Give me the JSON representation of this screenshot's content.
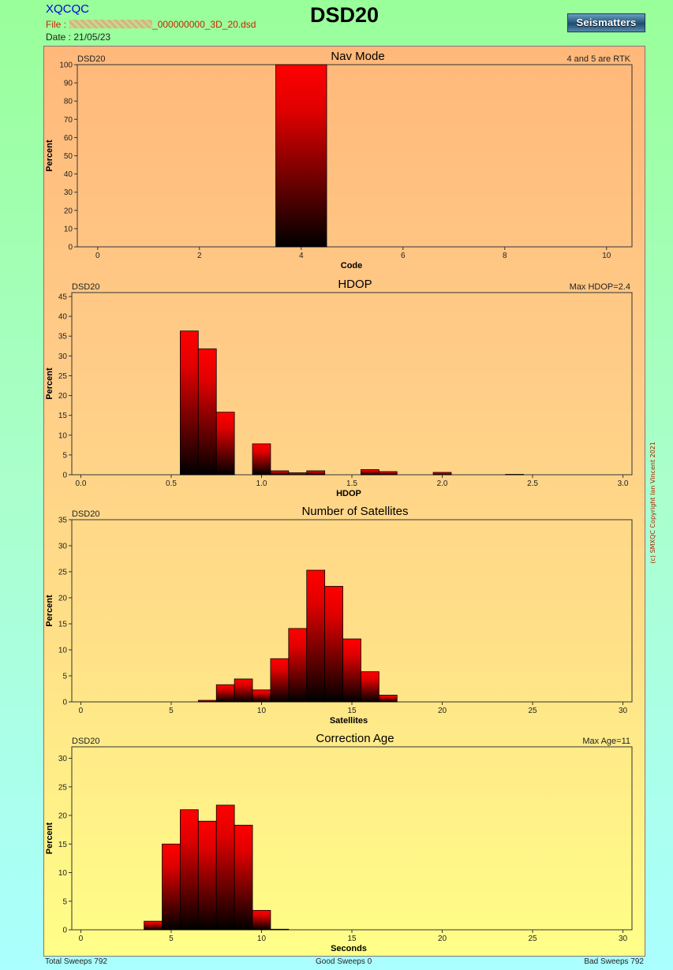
{
  "header": {
    "app_name": "XQCQC",
    "file_prefix": "File :",
    "file_name": "_000000000_3D_20.dsd",
    "date": "Date : 21/05/23",
    "title": "DSD20",
    "logo": "Seismatters"
  },
  "copyright": "(c) SMXQC Copyright Ian Vincent 2021",
  "footer": {
    "total": "Total Sweeps 792",
    "good": "Good Sweeps 0",
    "bad": "Bad Sweeps 792"
  },
  "colors": {
    "bar_top": "#ff0000",
    "bar_bottom": "#000000",
    "plot_border": "#333333"
  },
  "chart_data": [
    {
      "type": "bar",
      "title": "Nav Mode",
      "left_label": "DSD20",
      "right_label": "4 and 5 are RTK",
      "xlabel": "Code",
      "ylabel": "Percent",
      "xlim": [
        -0.4,
        10.5
      ],
      "ylim": [
        0,
        100
      ],
      "x_ticks": [
        0,
        2,
        4,
        6,
        8,
        10
      ],
      "x_tick_labels": [
        "0",
        "2",
        "4",
        "6",
        "8",
        "10"
      ],
      "y_ticks": [
        0,
        10,
        20,
        30,
        40,
        50,
        60,
        70,
        80,
        90,
        100
      ],
      "bar_width": 1,
      "x": [
        4
      ],
      "values": [
        100
      ]
    },
    {
      "type": "bar",
      "title": "HDOP",
      "left_label": "DSD20",
      "right_label": "Max HDOP=2.4",
      "xlabel": "HDOP",
      "ylabel": "Percent",
      "xlim": [
        -0.05,
        3.05
      ],
      "ylim": [
        0,
        46
      ],
      "x_ticks": [
        0,
        0.5,
        1,
        1.5,
        2,
        2.5,
        3
      ],
      "x_tick_labels": [
        "0.0",
        "0.5",
        "1.0",
        "1.5",
        "2.0",
        "2.5",
        "3.0"
      ],
      "y_ticks": [
        0,
        5,
        10,
        15,
        20,
        25,
        30,
        35,
        40,
        45
      ],
      "bar_width": 0.1,
      "x": [
        0.6,
        0.7,
        0.8,
        1.0,
        1.1,
        1.2,
        1.3,
        1.6,
        1.7,
        2.0,
        2.4
      ],
      "values": [
        36.3,
        31.8,
        15.8,
        7.8,
        1.0,
        0.5,
        1.0,
        1.3,
        0.8,
        0.6,
        0.1
      ]
    },
    {
      "type": "bar",
      "title": "Number of Satellites",
      "left_label": "DSD20",
      "right_label": "",
      "xlabel": "Satellites",
      "ylabel": "Percent",
      "xlim": [
        -0.5,
        30.5
      ],
      "ylim": [
        0,
        35
      ],
      "x_ticks": [
        0,
        5,
        10,
        15,
        20,
        25,
        30
      ],
      "x_tick_labels": [
        "0",
        "5",
        "10",
        "15",
        "20",
        "25",
        "30"
      ],
      "y_ticks": [
        0,
        5,
        10,
        15,
        20,
        25,
        30,
        35
      ],
      "bar_width": 1,
      "x": [
        7,
        8,
        9,
        10,
        11,
        12,
        13,
        14,
        15,
        16,
        17
      ],
      "values": [
        0.3,
        3.3,
        4.4,
        2.3,
        8.3,
        14.1,
        25.3,
        22.2,
        12.1,
        5.8,
        1.3
      ]
    },
    {
      "type": "bar",
      "title": "Correction Age",
      "left_label": "DSD20",
      "right_label": "Max Age=11",
      "xlabel": "Seconds",
      "ylabel": "Percent",
      "xlim": [
        -0.5,
        30.5
      ],
      "ylim": [
        0,
        32
      ],
      "x_ticks": [
        0,
        5,
        10,
        15,
        20,
        25,
        30
      ],
      "x_tick_labels": [
        "0",
        "5",
        "10",
        "15",
        "20",
        "25",
        "30"
      ],
      "y_ticks": [
        0,
        5,
        10,
        15,
        20,
        25,
        30
      ],
      "bar_width": 1,
      "x": [
        4,
        5,
        6,
        7,
        8,
        9,
        10,
        11
      ],
      "values": [
        1.5,
        15.0,
        21.0,
        19.0,
        21.8,
        18.3,
        3.4,
        0.1
      ]
    }
  ]
}
